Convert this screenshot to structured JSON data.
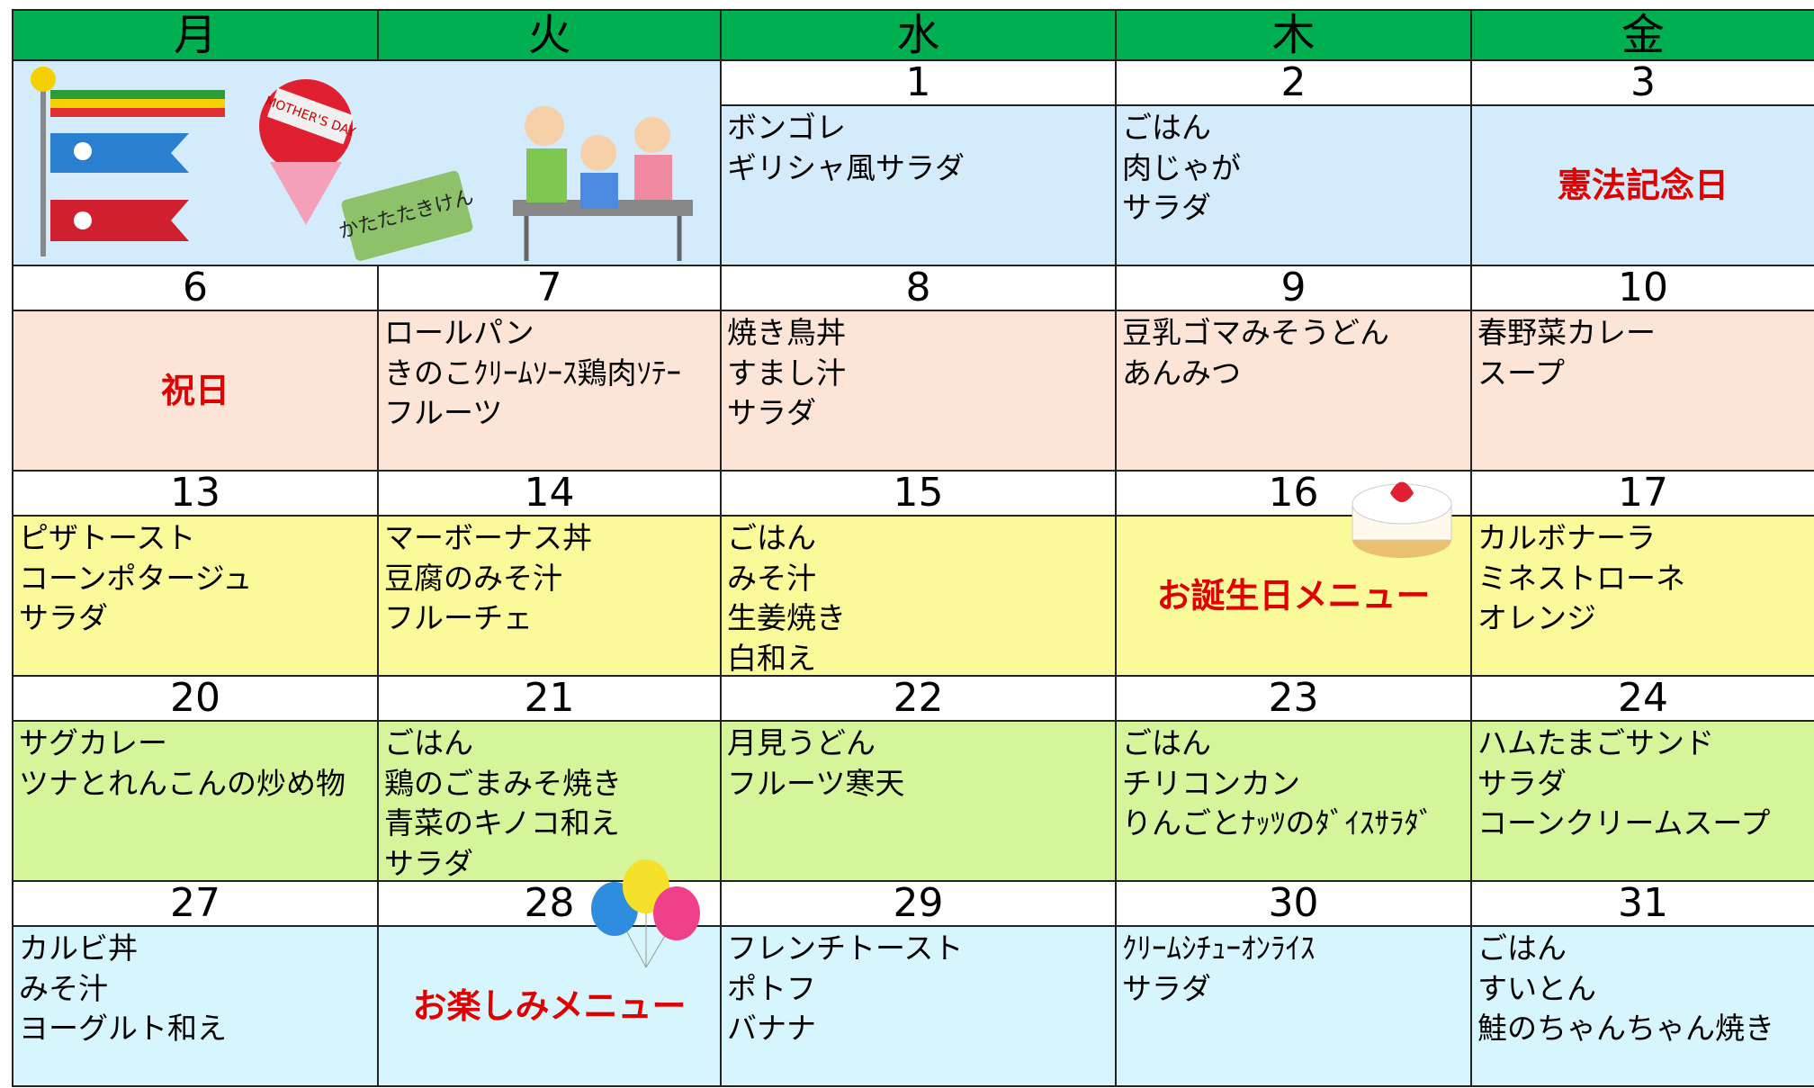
{
  "header": {
    "days": [
      "月",
      "火",
      "水",
      "木",
      "金"
    ]
  },
  "illustration": {
    "card": "かたたたきけん",
    "flower": "MOTHER'S DAY"
  },
  "weeks": [
    {
      "cells": [
        {
          "date": "1",
          "items": [
            "ボンゴレ",
            "ギリシャ風サラダ"
          ]
        },
        {
          "date": "2",
          "items": [
            "ごはん",
            "肉じゃが",
            "サラダ"
          ]
        },
        {
          "date": "3",
          "note": "憲法記念日"
        }
      ]
    },
    {
      "cells": [
        {
          "date": "6",
          "note": "祝日"
        },
        {
          "date": "7",
          "items": [
            "ロールパン",
            "きのこｸﾘｰﾑｿｰｽ鶏肉ｿﾃｰ",
            "フルーツ"
          ]
        },
        {
          "date": "8",
          "items": [
            "焼き鳥丼",
            "すまし汁",
            "サラダ"
          ]
        },
        {
          "date": "9",
          "items": [
            "豆乳ゴマみそうどん",
            "あんみつ"
          ]
        },
        {
          "date": "10",
          "items": [
            "春野菜カレー",
            "スープ"
          ]
        }
      ]
    },
    {
      "cells": [
        {
          "date": "13",
          "items": [
            "ピザトースト",
            "コーンポタージュ",
            "サラダ"
          ]
        },
        {
          "date": "14",
          "items": [
            "マーボーナス丼",
            "豆腐のみそ汁",
            "フルーチェ"
          ]
        },
        {
          "date": "15",
          "items": [
            "ごはん",
            "みそ汁",
            "生姜焼き",
            "白和え"
          ]
        },
        {
          "date": "16",
          "note": "お誕生日メニュー"
        },
        {
          "date": "17",
          "items": [
            "カルボナーラ",
            "ミネストローネ",
            "オレンジ"
          ]
        }
      ]
    },
    {
      "cells": [
        {
          "date": "20",
          "items": [
            "サグカレー",
            "ツナとれんこんの炒め物"
          ]
        },
        {
          "date": "21",
          "items": [
            "ごはん",
            "鶏のごまみそ焼き",
            "青菜のキノコ和え",
            "サラダ"
          ]
        },
        {
          "date": "22",
          "items": [
            "月見うどん",
            "フルーツ寒天"
          ]
        },
        {
          "date": "23",
          "items": [
            "ごはん",
            "チリコンカン",
            "りんごとﾅｯﾂのﾀﾞｲｽｻﾗﾀﾞ"
          ]
        },
        {
          "date": "24",
          "items": [
            "ハムたまごサンド",
            "サラダ",
            "コーンクリームスープ"
          ]
        }
      ]
    },
    {
      "cells": [
        {
          "date": "27",
          "items": [
            "カルビ丼",
            "みそ汁",
            "ヨーグルト和え"
          ]
        },
        {
          "date": "28",
          "note": "お楽しみメニュー"
        },
        {
          "date": "29",
          "items": [
            "フレンチトースト",
            "ポトフ",
            "バナナ"
          ]
        },
        {
          "date": "30",
          "items": [
            "ｸﾘｰﾑｼﾁｭｰｵﾝﾗｲｽ",
            "サラダ"
          ]
        },
        {
          "date": "31",
          "items": [
            "ごはん",
            "すいとん",
            "鮭のちゃんちゃん焼き"
          ]
        }
      ]
    }
  ]
}
